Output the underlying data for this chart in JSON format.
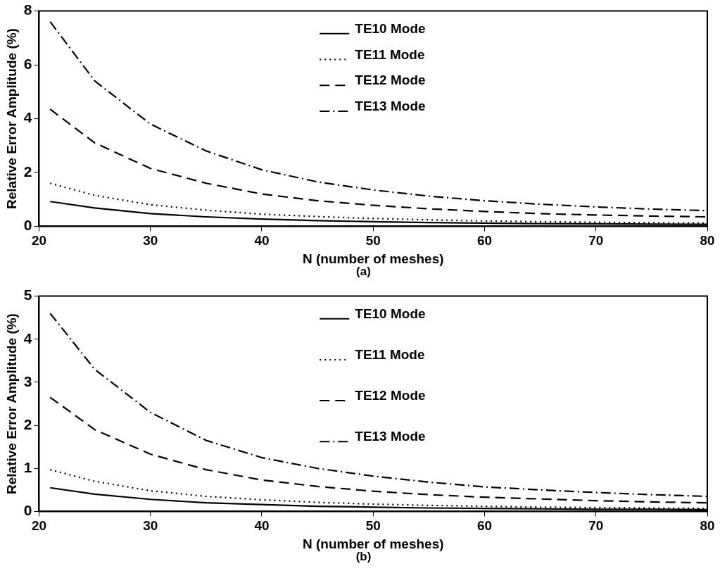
{
  "chart_data": [
    {
      "type": "line",
      "xlabel": "N (number of meshes)",
      "ylabel": "Relative Error Amplitude (%)",
      "annotations": [
        "(a)"
      ],
      "x": [
        21,
        25,
        30,
        35,
        40,
        45,
        50,
        55,
        60,
        65,
        70,
        75,
        80
      ],
      "xlim": [
        20,
        80
      ],
      "xticks": [
        20,
        30,
        40,
        50,
        60,
        70,
        80
      ],
      "ylim": [
        0,
        8
      ],
      "yticks": [
        0,
        2,
        4,
        6,
        8
      ],
      "grid": false,
      "legend": "top",
      "marker": "none",
      "series": [
        {
          "name": "TE10 Mode",
          "color": "#000000",
          "line_style": "solid",
          "values": [
            0.92,
            0.68,
            0.47,
            0.35,
            0.27,
            0.21,
            0.17,
            0.14,
            0.12,
            0.1,
            0.09,
            0.08,
            0.07
          ]
        },
        {
          "name": "TE11 Mode",
          "color": "#000000",
          "line_style": "dotted",
          "values": [
            1.6,
            1.15,
            0.8,
            0.6,
            0.45,
            0.36,
            0.29,
            0.24,
            0.2,
            0.17,
            0.15,
            0.13,
            0.12
          ]
        },
        {
          "name": "TE12 Mode",
          "color": "#000000",
          "line_style": "dashed",
          "values": [
            4.35,
            3.1,
            2.15,
            1.6,
            1.2,
            0.95,
            0.78,
            0.65,
            0.55,
            0.47,
            0.42,
            0.38,
            0.35
          ]
        },
        {
          "name": "TE13 Mode",
          "color": "#000000",
          "line_style": "dashdot",
          "values": [
            7.6,
            5.4,
            3.8,
            2.8,
            2.1,
            1.65,
            1.35,
            1.12,
            0.95,
            0.82,
            0.72,
            0.64,
            0.58
          ]
        }
      ]
    },
    {
      "type": "line",
      "xlabel": "N (number of meshes)",
      "ylabel": "Relative Error Amplitude (%)",
      "annotations": [
        "(b)"
      ],
      "x": [
        21,
        25,
        30,
        35,
        40,
        45,
        50,
        55,
        60,
        65,
        70,
        75,
        80
      ],
      "xlim": [
        20,
        80
      ],
      "xticks": [
        20,
        30,
        40,
        50,
        60,
        70,
        80
      ],
      "ylim": [
        0,
        5
      ],
      "yticks": [
        0,
        1,
        2,
        3,
        4,
        5
      ],
      "grid": false,
      "legend": "top",
      "marker": "none",
      "series": [
        {
          "name": "TE10 Mode",
          "color": "#000000",
          "line_style": "solid",
          "values": [
            0.55,
            0.4,
            0.28,
            0.2,
            0.16,
            0.12,
            0.1,
            0.08,
            0.07,
            0.06,
            0.05,
            0.05,
            0.04
          ]
        },
        {
          "name": "TE11 Mode",
          "color": "#000000",
          "line_style": "dotted",
          "values": [
            0.97,
            0.7,
            0.48,
            0.35,
            0.27,
            0.21,
            0.17,
            0.14,
            0.12,
            0.1,
            0.09,
            0.08,
            0.07
          ]
        },
        {
          "name": "TE12 Mode",
          "color": "#000000",
          "line_style": "dashed",
          "values": [
            2.65,
            1.9,
            1.33,
            0.97,
            0.73,
            0.58,
            0.47,
            0.39,
            0.33,
            0.29,
            0.25,
            0.22,
            0.2
          ]
        },
        {
          "name": "TE13 Mode",
          "color": "#000000",
          "line_style": "dashdot",
          "values": [
            4.6,
            3.3,
            2.3,
            1.65,
            1.25,
            1.0,
            0.82,
            0.68,
            0.57,
            0.5,
            0.44,
            0.39,
            0.35
          ]
        }
      ]
    }
  ]
}
